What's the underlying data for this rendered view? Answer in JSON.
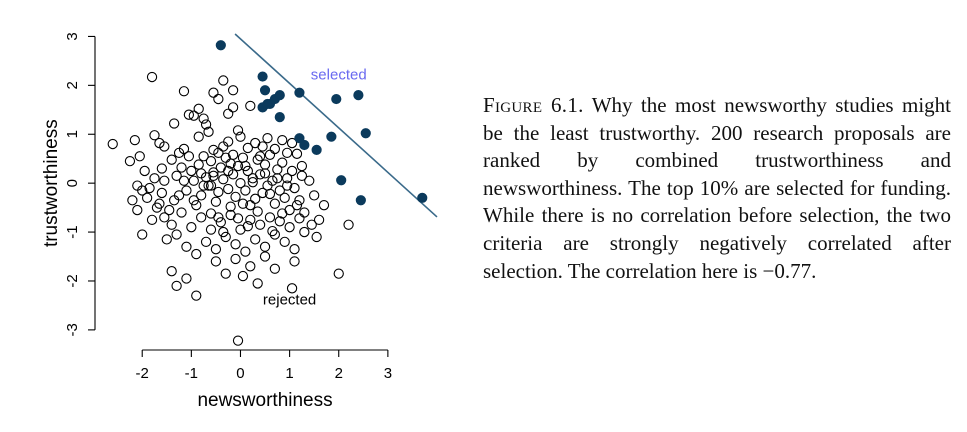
{
  "figure": {
    "label": "Figure 6.1.",
    "text": "Why the most newsworthy studies might be the least trustworthy. 200 research proposals are ranked by combined trustworthiness and newsworthiness. The top 10% are selected for funding. While there is no correlation before selection, the two criteria are strongly negatively correlated after selection. The correlation here is −0.77."
  },
  "colors": {
    "selected": "#0b3a5c",
    "line": "#3a6a8a",
    "selected_label": "#6a6af0",
    "rejected": "#000000"
  },
  "chart_data": {
    "type": "scatter",
    "title": "",
    "xlabel": "newsworthiness",
    "ylabel": "trustworthiness",
    "xlim": [
      -2.9,
      4.0
    ],
    "ylim": [
      -3.35,
      3.05
    ],
    "xticks": [
      -2,
      -1,
      0,
      1,
      2,
      3
    ],
    "yticks": [
      -3,
      -2,
      -1,
      0,
      1,
      2,
      3
    ],
    "annotations": [
      {
        "text": "selected",
        "x": 2.0,
        "y": 2.12
      },
      {
        "text": "rejected",
        "x": 1.0,
        "y": -2.48
      }
    ],
    "selection_line": {
      "intercept": 2.95,
      "slope": -0.91
    },
    "series": [
      {
        "points": [
          [
            -0.4,
            2.82
          ],
          [
            0.45,
            2.18
          ],
          [
            0.5,
            1.9
          ],
          [
            0.7,
            1.72
          ],
          [
            0.6,
            1.62
          ],
          [
            0.8,
            1.8
          ],
          [
            1.2,
            1.85
          ],
          [
            0.45,
            1.55
          ],
          [
            0.55,
            1.62
          ],
          [
            0.8,
            1.35
          ],
          [
            1.95,
            1.72
          ],
          [
            2.4,
            1.8
          ],
          [
            1.2,
            0.92
          ],
          [
            1.3,
            0.78
          ],
          [
            1.55,
            0.68
          ],
          [
            1.85,
            0.95
          ],
          [
            2.55,
            1.02
          ],
          [
            2.05,
            0.06
          ],
          [
            2.45,
            -0.35
          ],
          [
            3.7,
            -0.3
          ]
        ]
      },
      {
        "points": [
          [
            -2.6,
            0.8
          ],
          [
            -2.15,
            0.88
          ],
          [
            -2.05,
            0.55
          ],
          [
            -1.75,
            0.98
          ],
          [
            -1.65,
            0.82
          ],
          [
            -1.8,
            2.17
          ],
          [
            -1.55,
            0.75
          ],
          [
            -1.35,
            1.22
          ],
          [
            -1.25,
            0.62
          ],
          [
            -1.4,
            0.48
          ],
          [
            -1.15,
            1.88
          ],
          [
            -1.05,
            1.4
          ],
          [
            -0.95,
            1.38
          ],
          [
            -0.85,
            1.52
          ],
          [
            -0.75,
            1.32
          ],
          [
            -0.65,
            1.05
          ],
          [
            -0.7,
            1.2
          ],
          [
            -0.55,
            1.85
          ],
          [
            -0.45,
            1.72
          ],
          [
            -0.35,
            2.1
          ],
          [
            -0.15,
            1.9
          ],
          [
            0.2,
            1.58
          ],
          [
            -0.05,
            1.08
          ],
          [
            -0.15,
            1.55
          ],
          [
            -0.25,
            1.42
          ],
          [
            -2.1,
            -0.05
          ],
          [
            -2.0,
            -0.15
          ],
          [
            -1.9,
            -0.3
          ],
          [
            -1.85,
            -0.1
          ],
          [
            -1.75,
            0.1
          ],
          [
            -1.65,
            -0.42
          ],
          [
            -1.6,
            -0.2
          ],
          [
            -1.55,
            0.05
          ],
          [
            -1.45,
            -0.55
          ],
          [
            -1.35,
            -0.35
          ],
          [
            -1.3,
            0.15
          ],
          [
            -1.2,
            0.32
          ],
          [
            -1.1,
            -0.15
          ],
          [
            -1.0,
            0.25
          ],
          [
            -0.95,
            0.05
          ],
          [
            -0.9,
            -0.45
          ],
          [
            -0.85,
            0.38
          ],
          [
            -0.8,
            -0.25
          ],
          [
            -0.75,
            0.55
          ],
          [
            -0.7,
            0.12
          ],
          [
            -0.65,
            -0.05
          ],
          [
            -0.6,
            0.45
          ],
          [
            -0.55,
            0.22
          ],
          [
            -0.5,
            -0.38
          ],
          [
            -0.45,
            0.62
          ],
          [
            -0.4,
            0.32
          ],
          [
            -0.35,
            0.08
          ],
          [
            -0.3,
            0.52
          ],
          [
            -0.25,
            -0.12
          ],
          [
            -0.2,
            0.4
          ],
          [
            -0.15,
            0.18
          ],
          [
            -0.1,
            -0.28
          ],
          [
            -0.05,
            0.35
          ],
          [
            0.0,
            0.0
          ],
          [
            0.05,
            0.52
          ],
          [
            0.1,
            -0.15
          ],
          [
            0.15,
            0.25
          ],
          [
            0.2,
            -0.45
          ],
          [
            0.25,
            0.1
          ],
          [
            0.3,
            -0.32
          ],
          [
            0.35,
            0.48
          ],
          [
            0.4,
            0.18
          ],
          [
            0.45,
            -0.2
          ],
          [
            0.5,
            0.38
          ],
          [
            0.55,
            -0.05
          ],
          [
            0.6,
            0.58
          ],
          [
            0.65,
            0.05
          ],
          [
            0.7,
            -0.42
          ],
          [
            0.75,
            0.28
          ],
          [
            0.8,
            -0.15
          ],
          [
            0.85,
            0.42
          ],
          [
            0.9,
            -0.3
          ],
          [
            0.95,
            0.1
          ],
          [
            1.0,
            -0.55
          ],
          [
            1.05,
            0.25
          ],
          [
            1.1,
            -0.1
          ],
          [
            1.15,
            0.6
          ],
          [
            1.2,
            -0.35
          ],
          [
            1.25,
            0.15
          ],
          [
            1.3,
            -0.6
          ],
          [
            -2.2,
            -0.35
          ],
          [
            -2.1,
            -0.55
          ],
          [
            -2.0,
            -1.05
          ],
          [
            -1.8,
            -0.75
          ],
          [
            -1.7,
            -0.5
          ],
          [
            -1.5,
            -1.15
          ],
          [
            -1.4,
            -0.85
          ],
          [
            -1.3,
            -1.05
          ],
          [
            -1.2,
            -0.6
          ],
          [
            -1.1,
            -1.3
          ],
          [
            -1.0,
            -0.9
          ],
          [
            -0.9,
            -1.45
          ],
          [
            -0.8,
            -0.7
          ],
          [
            -0.7,
            -1.2
          ],
          [
            -0.6,
            -0.95
          ],
          [
            -0.5,
            -1.35
          ],
          [
            -0.4,
            -0.8
          ],
          [
            -0.3,
            -1.1
          ],
          [
            -0.2,
            -0.65
          ],
          [
            -0.1,
            -1.25
          ],
          [
            0.0,
            -0.95
          ],
          [
            0.1,
            -1.4
          ],
          [
            0.2,
            -0.75
          ],
          [
            0.3,
            -1.15
          ],
          [
            0.4,
            -0.85
          ],
          [
            0.5,
            -1.3
          ],
          [
            0.6,
            -0.7
          ],
          [
            0.7,
            -1.05
          ],
          [
            0.8,
            -0.78
          ],
          [
            0.9,
            -1.2
          ],
          [
            1.0,
            -0.9
          ],
          [
            1.1,
            -1.35
          ],
          [
            1.2,
            -0.72
          ],
          [
            1.3,
            -1.0
          ],
          [
            1.45,
            -0.85
          ],
          [
            1.55,
            -1.1
          ],
          [
            1.6,
            -0.75
          ],
          [
            1.7,
            -0.45
          ],
          [
            -1.4,
            -1.8
          ],
          [
            -1.3,
            -2.1
          ],
          [
            -1.1,
            -1.95
          ],
          [
            -0.9,
            -2.3
          ],
          [
            -0.5,
            -1.6
          ],
          [
            -0.3,
            -1.85
          ],
          [
            -0.1,
            -1.55
          ],
          [
            0.05,
            -1.9
          ],
          [
            0.2,
            -1.7
          ],
          [
            0.35,
            -2.05
          ],
          [
            0.5,
            -1.5
          ],
          [
            0.7,
            -1.75
          ],
          [
            1.1,
            -1.6
          ],
          [
            1.05,
            -2.15
          ],
          [
            2.0,
            -1.85
          ],
          [
            2.2,
            -0.85
          ],
          [
            1.5,
            -0.25
          ],
          [
            -0.05,
            -3.22
          ],
          [
            -0.6,
            -0.05
          ],
          [
            -0.55,
            0.68
          ],
          [
            -0.35,
            0.75
          ],
          [
            0.0,
            0.95
          ],
          [
            0.15,
            0.72
          ],
          [
            0.3,
            0.82
          ],
          [
            0.55,
            0.92
          ],
          [
            0.7,
            0.7
          ],
          [
            0.95,
            0.62
          ],
          [
            1.05,
            0.82
          ],
          [
            -1.95,
            0.25
          ],
          [
            -2.25,
            0.45
          ],
          [
            -1.15,
            0.7
          ],
          [
            -0.85,
            0.95
          ],
          [
            -0.25,
            0.85
          ],
          [
            0.45,
            0.75
          ],
          [
            0.85,
            0.88
          ],
          [
            -0.15,
            0.58
          ],
          [
            0.25,
            0.02
          ],
          [
            -0.45,
            -0.18
          ],
          [
            0.6,
            -0.22
          ],
          [
            -0.8,
            0.2
          ],
          [
            -1.05,
            0.55
          ],
          [
            0.1,
            0.35
          ],
          [
            -0.2,
            -0.48
          ],
          [
            0.35,
            -0.58
          ],
          [
            -0.6,
            -0.62
          ],
          [
            0.85,
            -0.62
          ],
          [
            -1.25,
            -0.25
          ],
          [
            -1.6,
            0.3
          ],
          [
            1.4,
            0.05
          ],
          [
            1.25,
            0.35
          ],
          [
            -0.05,
            -0.72
          ],
          [
            0.5,
            0.2
          ],
          [
            -0.75,
            -0.05
          ],
          [
            0.15,
            -0.88
          ],
          [
            -0.35,
            -1.0
          ],
          [
            0.65,
            -0.98
          ],
          [
            -0.95,
            -0.35
          ],
          [
            1.15,
            -0.45
          ],
          [
            -1.55,
            -0.7
          ],
          [
            0.05,
            -0.42
          ],
          [
            0.4,
            0.55
          ],
          [
            -0.55,
            0.15
          ],
          [
            -0.25,
            0.25
          ],
          [
            0.75,
            0.1
          ],
          [
            -1.15,
            0.05
          ],
          [
            0.95,
            -0.05
          ],
          [
            -0.45,
            -0.7
          ]
        ]
      }
    ]
  }
}
